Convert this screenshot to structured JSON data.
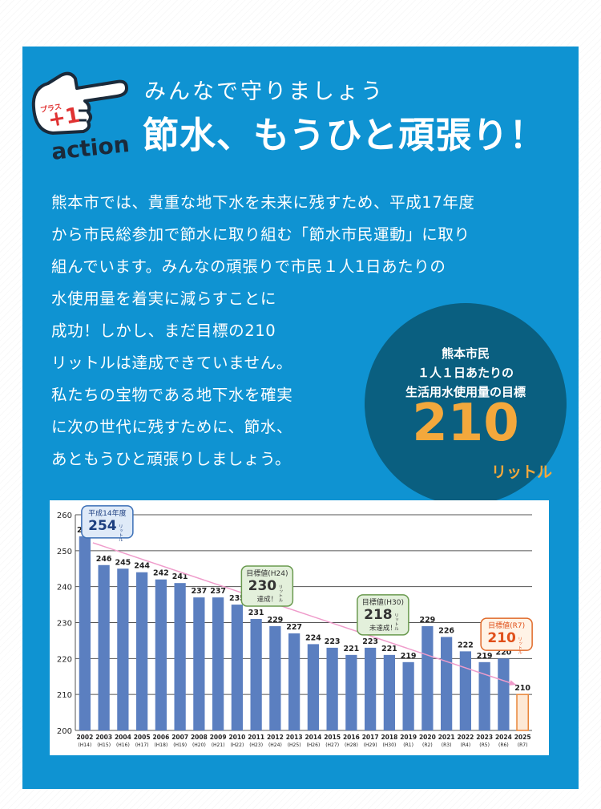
{
  "header": {
    "badge_small": "プラス",
    "badge_big": "+1",
    "action_word": "action",
    "subtitle": "みんなで守りましょう",
    "title": "節水、もうひと頑張り！"
  },
  "body_lines": [
    "熊本市では、貴重な地下水を未来に残すため、平成17年度",
    "から市民総参加で節水に取り組む「節水市民運動」に取り",
    "組んでいます。みんなの頑張りで市民１人1日あたりの"
  ],
  "body_lines_left": [
    "水使用量を着実に減らすことに",
    "成功！しかし、まだ目標の210",
    "リットルは達成できていません。",
    "私たちの宝物である地下水を確実",
    "に次の世代に残すために、節水、",
    "あともうひと頑張りしましょう。"
  ],
  "target_circle": {
    "line1": "熊本市民",
    "line2": "１人１日あたりの",
    "line3": "生活用水使用量の目標",
    "value": "210",
    "unit": "リットル"
  },
  "chart_data": {
    "type": "bar",
    "ylim": [
      200,
      260
    ],
    "yticks": [
      "200",
      "210",
      "220",
      "230",
      "240",
      "250",
      "260"
    ],
    "categories": [
      "2002",
      "2003",
      "2004",
      "2005",
      "2006",
      "2007",
      "2008",
      "2009",
      "2010",
      "2011",
      "2012",
      "2013",
      "2014",
      "2015",
      "2016",
      "2017",
      "2018",
      "2019",
      "2020",
      "2021",
      "2022",
      "2023",
      "2024",
      "2025"
    ],
    "era_labels": [
      "(H14)",
      "(H15)",
      "(H16)",
      "(H17)",
      "(H18)",
      "(H19)",
      "(H20)",
      "(H21)",
      "(H22)",
      "(H23)",
      "(H24)",
      "(H25)",
      "(H26)",
      "(H27)",
      "(H28)",
      "(H29)",
      "(H30)",
      "(R1)",
      "(R2)",
      "(R3)",
      "(R4)",
      "(R5)",
      "(R6)",
      "(R7)"
    ],
    "values": [
      254,
      246,
      245,
      244,
      242,
      241,
      237,
      237,
      235,
      231,
      229,
      227,
      224,
      223,
      221,
      223,
      221,
      219,
      229,
      226,
      222,
      219,
      220,
      210
    ],
    "colors": {
      "bar": "#5b7fc0",
      "target_bar": "#fde9d6",
      "target_border": "#e8853a",
      "trend": "#ef9ccb"
    },
    "callouts": [
      {
        "label": "平成14年度",
        "value": "254",
        "unit": "リットル",
        "note": ""
      },
      {
        "label": "目標値(H24)",
        "value": "230",
        "unit": "リットル",
        "note": "達成！"
      },
      {
        "label": "目標値(H30)",
        "value": "218",
        "unit": "リットル",
        "note": "未達成！"
      },
      {
        "label": "目標値(R7)",
        "value": "210",
        "unit": "リットル",
        "note": ""
      }
    ]
  }
}
